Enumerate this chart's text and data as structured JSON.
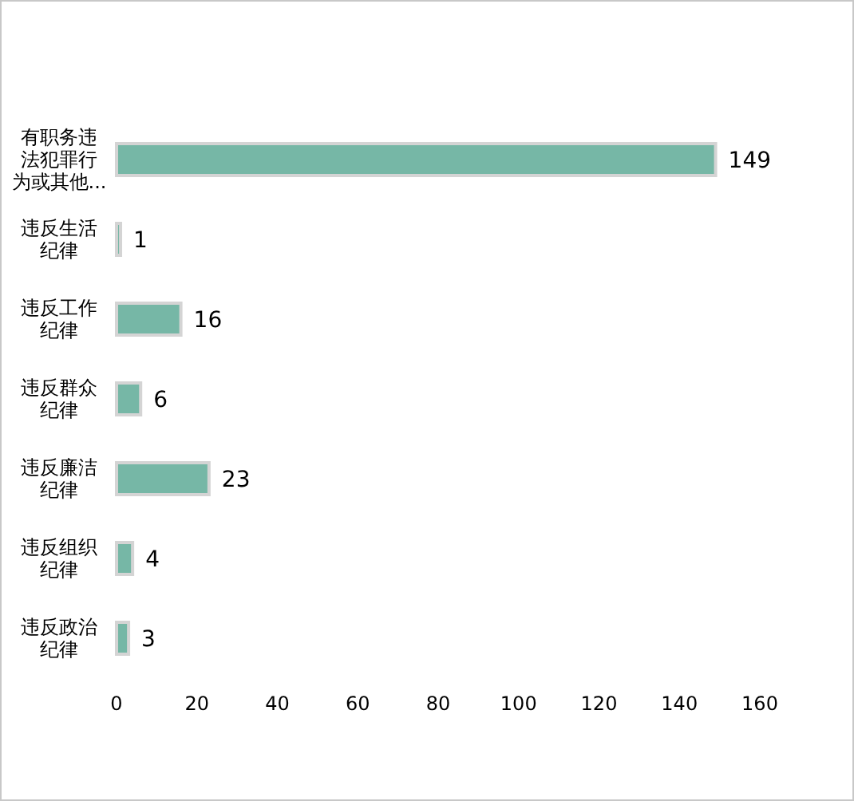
{
  "chart_data": {
    "type": "bar",
    "orientation": "horizontal",
    "categories": [
      "有职务违法犯罪行为或其他...",
      "违反生活纪律",
      "违反工作纪律",
      "违反群众纪律",
      "违反廉洁纪律",
      "违反组织纪律",
      "违反政治纪律"
    ],
    "values": [
      149,
      1,
      16,
      6,
      23,
      4,
      3
    ],
    "color": "#76b7a6",
    "xlim": [
      0,
      160
    ],
    "xticks": [
      0,
      20,
      40,
      60,
      80,
      100,
      120,
      140,
      160
    ],
    "grid": false,
    "data_labels": true
  }
}
